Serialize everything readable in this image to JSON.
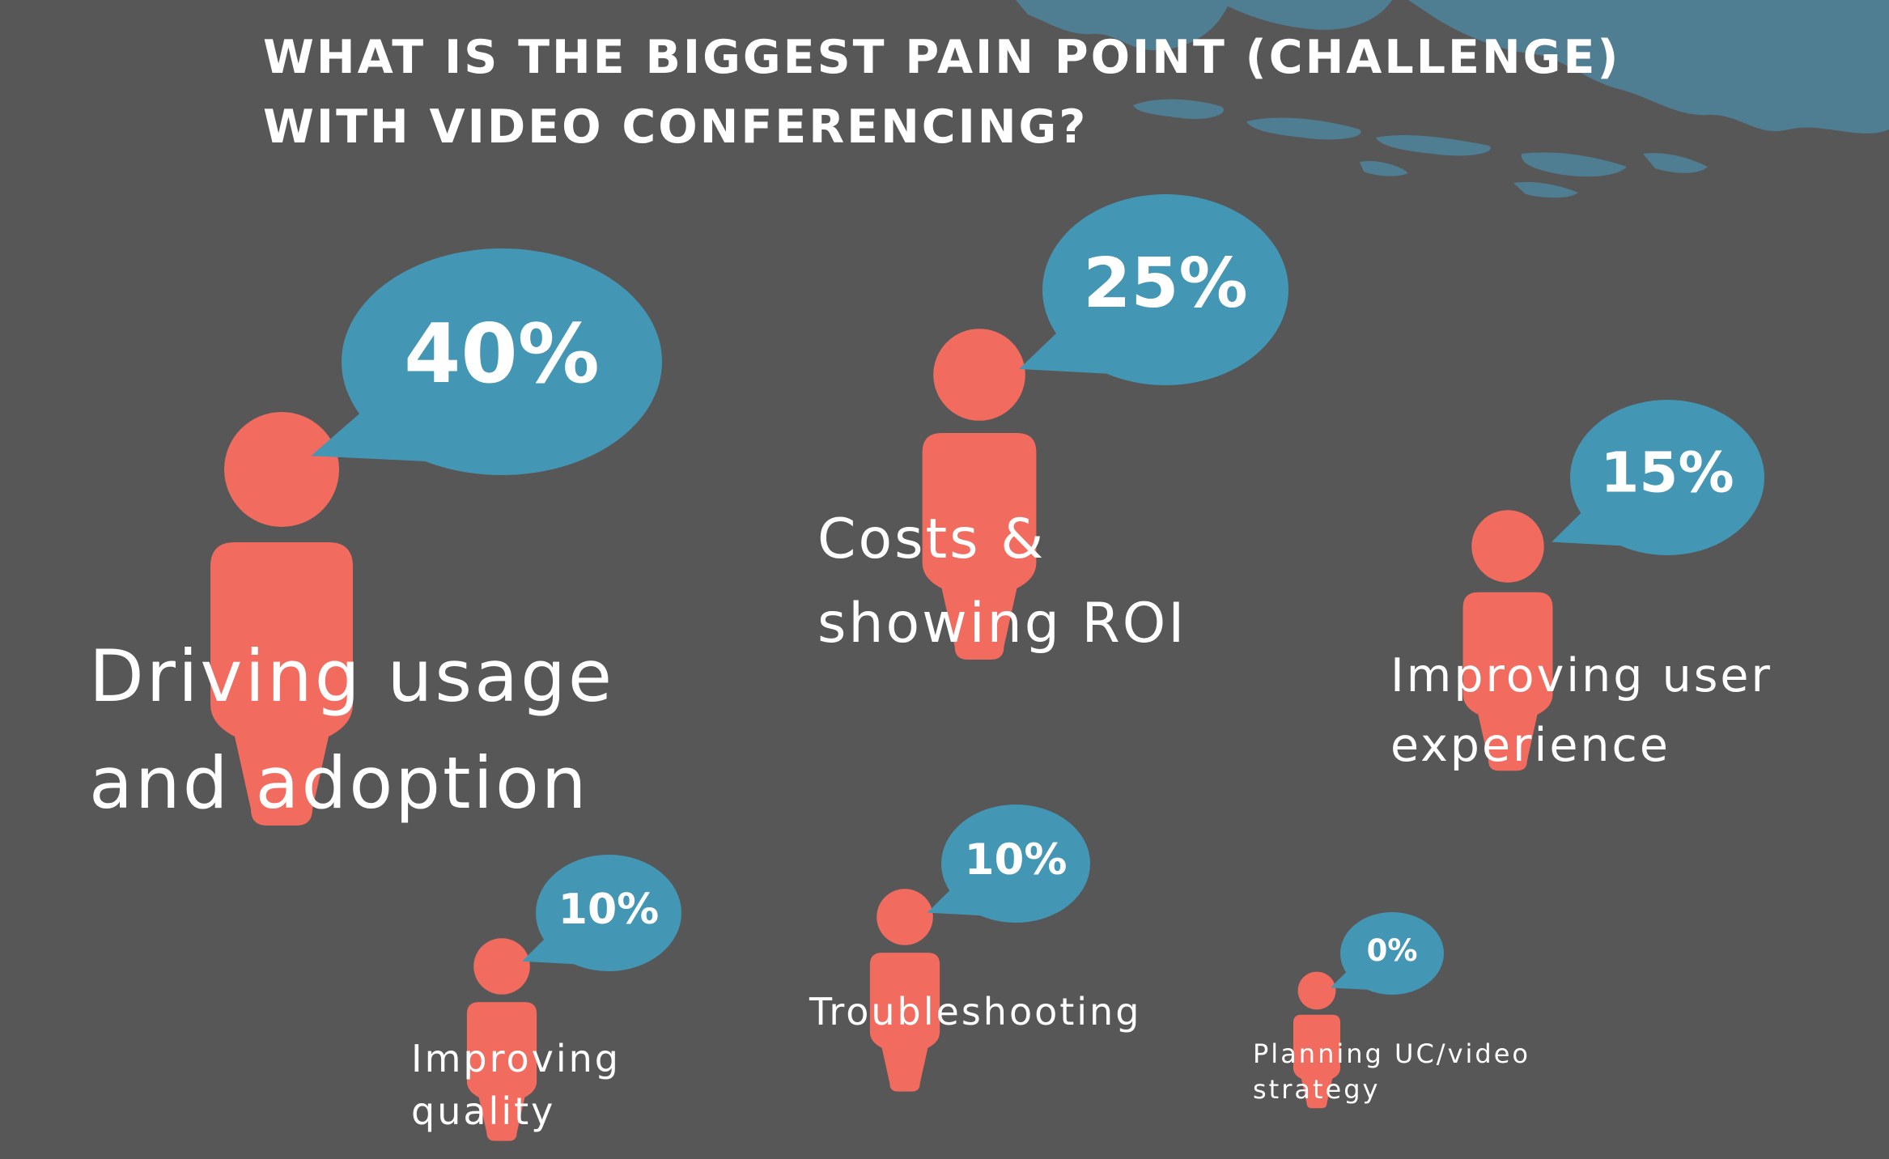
{
  "title": "WHAT IS THE BIGGEST PAIN POINT (CHALLENGE)\nWITH VIDEO CONFERENCING?",
  "colors": {
    "background": "#575757",
    "person": "#f26b5f",
    "bubble": "#4497b4",
    "map": "#4f7d92",
    "text": "#ffffff"
  },
  "icons": {
    "person": "person-icon",
    "bubble": "speech-bubble-icon",
    "map": "world-map-fragment"
  },
  "chart_data": {
    "type": "bubble-infographic",
    "title": "WHAT IS THE BIGGEST PAIN POINT (CHALLENGE)\nWITH VIDEO CONFERENCING?",
    "categories": [
      "Driving usage\nand adoption",
      "Costs &\nshowing ROI",
      "Improving user\nexperience",
      "Improving\nquality",
      "Troubleshooting",
      "Planning UC/video\nstrategy"
    ],
    "values": [
      40,
      25,
      15,
      10,
      10,
      0
    ],
    "value_labels": [
      "40%",
      "25%",
      "15%",
      "10%",
      "10%",
      "0%"
    ]
  }
}
